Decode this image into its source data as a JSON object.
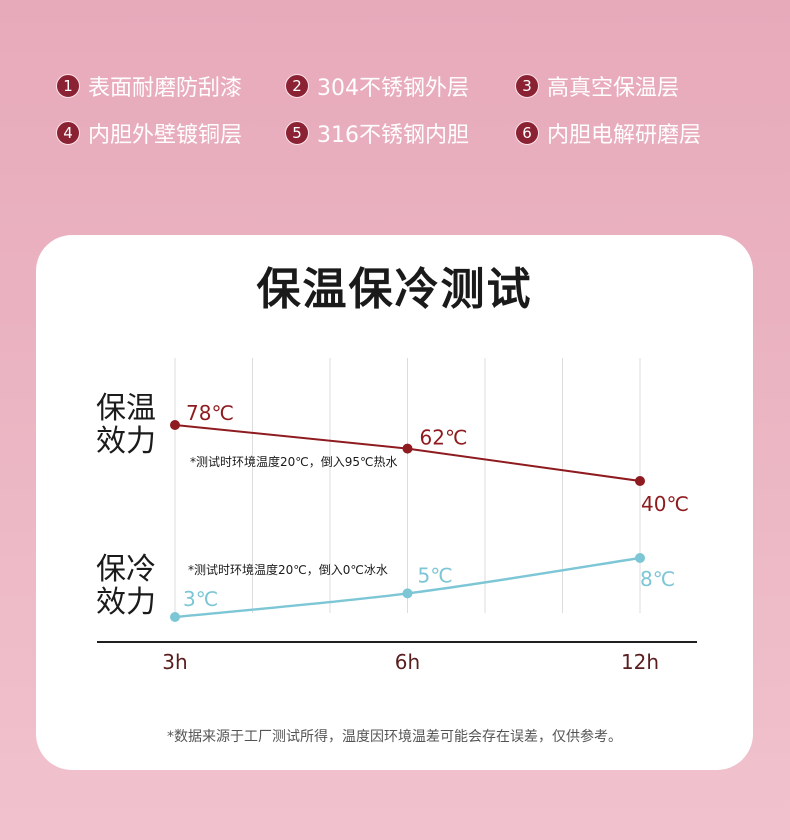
{
  "features": [
    {
      "num": "1",
      "text": "表面耐磨防刮漆"
    },
    {
      "num": "2",
      "text": "304不锈钢外层"
    },
    {
      "num": "3",
      "text": "高真空保温层"
    },
    {
      "num": "4",
      "text": "内胆外壁镀铜层"
    },
    {
      "num": "5",
      "text": "316不锈钢内胆"
    },
    {
      "num": "6",
      "text": "内胆电解研磨层"
    }
  ],
  "colors": {
    "badge": "#8a2233",
    "tick_label": "#5a1d1d",
    "card_background": "#ffffff"
  },
  "chart_data": {
    "type": "line",
    "title": "保温保冷测试",
    "categories": [
      "3h",
      "6h",
      "12h"
    ],
    "unit": "℃",
    "grid": true,
    "series": [
      {
        "name": "保温效力",
        "values": [
          78,
          62,
          40
        ],
        "note": "*测试时环境温度20℃，倒入95℃热水",
        "color": "#8e1b1f"
      },
      {
        "name": "保冷效力",
        "values": [
          3,
          5,
          8
        ],
        "note": "*测试时环境温度20℃，倒入0℃冰水",
        "color": "#7cc6d6"
      }
    ],
    "footnote": "*数据来源于工厂测试所得，温度因环境温差可能会存在误差，仅供参考。"
  }
}
